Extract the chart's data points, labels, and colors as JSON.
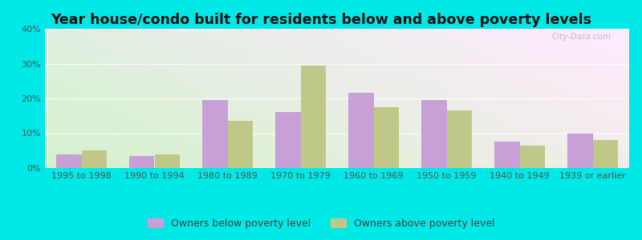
{
  "title": "Year house/condo built for residents below and above poverty levels",
  "categories": [
    "1995 to 1998",
    "1990 to 1994",
    "1980 to 1989",
    "1970 to 1979",
    "1960 to 1969",
    "1950 to 1959",
    "1940 to 1949",
    "1939 or earlier"
  ],
  "below_poverty": [
    4.0,
    3.5,
    19.5,
    16.0,
    21.5,
    19.5,
    7.5,
    10.0
  ],
  "above_poverty": [
    5.0,
    4.0,
    13.5,
    29.5,
    17.5,
    16.5,
    6.5,
    8.0
  ],
  "below_color": "#c8a0d8",
  "above_color": "#c0c888",
  "outer_background": "#00e8e8",
  "ylim": [
    0,
    40
  ],
  "yticks": [
    0,
    10,
    20,
    30,
    40
  ],
  "legend_below": "Owners below poverty level",
  "legend_above": "Owners above poverty level",
  "bar_width": 0.35,
  "grid_color": "#e0e8d8",
  "title_fontsize": 12.5,
  "tick_fontsize": 8,
  "legend_fontsize": 9
}
